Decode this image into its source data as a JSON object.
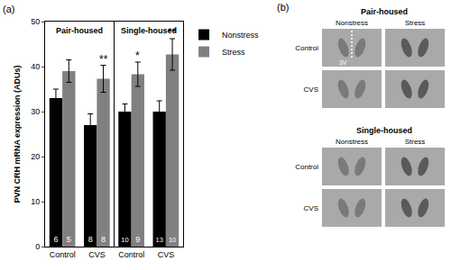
{
  "chart_data": {
    "type": "bar",
    "panel_label": "(a)",
    "y_label": "PVN CRH mRNA expression (ADUs)",
    "categories": [
      "Control",
      "CVS",
      "Control",
      "CVS"
    ],
    "groups": [
      {
        "label": "Pair-housed",
        "span": [
          0,
          1
        ]
      },
      {
        "label": "Single-housed",
        "span": [
          2,
          3
        ]
      }
    ],
    "series": [
      {
        "name": "Nonstress",
        "color": "#000000",
        "values": [
          33,
          27,
          30,
          30
        ],
        "errors": [
          2,
          2.5,
          1.7,
          2.4
        ],
        "n": [
          6,
          8,
          10,
          13
        ],
        "significance": [
          null,
          null,
          null,
          null
        ]
      },
      {
        "name": "Stress",
        "color": "#808080",
        "values": [
          39,
          37.3,
          38.3,
          42.7
        ],
        "errors": [
          2.5,
          3,
          2.7,
          3.5
        ],
        "n": [
          5,
          8,
          9,
          10
        ],
        "significance": [
          null,
          "**",
          "*",
          "**"
        ]
      }
    ],
    "ylim": [
      0,
      50
    ],
    "yticks": [
      0,
      10,
      20,
      30,
      40,
      50
    ],
    "grid": false,
    "legend": "top right"
  },
  "panel_b": {
    "label": "(b)",
    "marker_label": "3V",
    "sections": [
      {
        "title": "Pair-housed",
        "columns": [
          "Nonstress",
          "Stress"
        ],
        "rows": [
          "Control",
          "CVS"
        ]
      },
      {
        "title": "Single-housed",
        "columns": [
          "Nonstress",
          "Stress"
        ],
        "rows": [
          "Control",
          "CVS"
        ]
      }
    ]
  }
}
